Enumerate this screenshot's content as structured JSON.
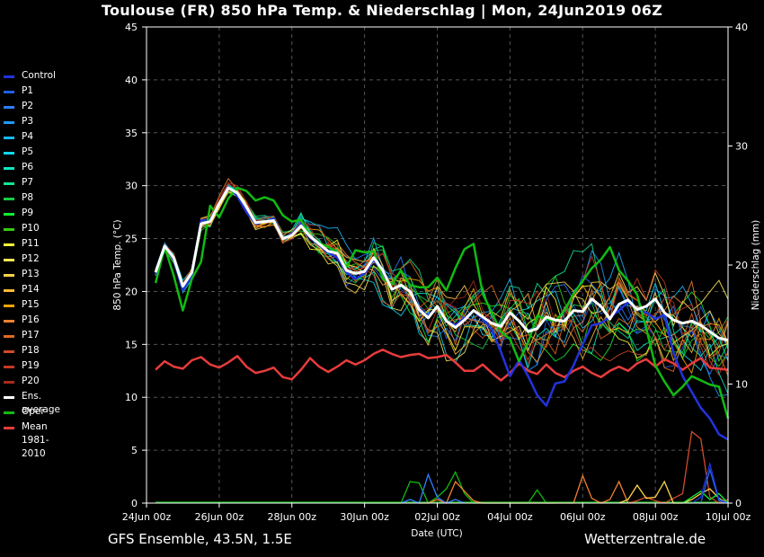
{
  "page": {
    "title": "Toulouse  (FR)  850 hPa Temp. & Niederschlag | Mon, 24Jun2019 06Z",
    "footer_left": "GFS Ensemble, 43.5N, 1.5E",
    "footer_right": "Wetterzentrale.de"
  },
  "chart_data": {
    "type": "line",
    "xlabel": "Date (UTC)",
    "ylabel": "850 hPa Temp. (°C)",
    "ylabel_right": "Niederschlag (mm)",
    "ylim": [
      0,
      45
    ],
    "ylim_right": [
      0,
      40
    ],
    "yticks": [
      "0",
      "5",
      "10",
      "15",
      "20",
      "25",
      "30",
      "35",
      "40",
      "45"
    ],
    "yticks_right": [
      "0",
      "10",
      "20",
      "30",
      "40"
    ],
    "xlim_hours": [
      0,
      384
    ],
    "xticks": [
      "24Jun 00z",
      "26Jun 00z",
      "28Jun 00z",
      "30Jun 00z",
      "02Jul 00z",
      "04Jul 00z",
      "06Jul 00z",
      "08Jul 00z",
      "10Jul 00z"
    ],
    "grid": true,
    "legend_position": "left",
    "legend": [
      {
        "label": "Control",
        "color": "#2233dd"
      },
      {
        "label": "P1",
        "color": "#1f5fe6"
      },
      {
        "label": "P2",
        "color": "#2f7dff"
      },
      {
        "label": "P3",
        "color": "#1e9bff"
      },
      {
        "label": "P4",
        "color": "#19b7ff"
      },
      {
        "label": "P5",
        "color": "#10d8ee"
      },
      {
        "label": "P6",
        "color": "#10e8c0"
      },
      {
        "label": "P7",
        "color": "#10e890"
      },
      {
        "label": "P8",
        "color": "#18cc44"
      },
      {
        "label": "P9",
        "color": "#11ee33"
      },
      {
        "label": "P10",
        "color": "#33cc11"
      },
      {
        "label": "P11",
        "color": "#ffff33"
      },
      {
        "label": "P12",
        "color": "#ffe855"
      },
      {
        "label": "P13",
        "color": "#ffd24a"
      },
      {
        "label": "P14",
        "color": "#ffbb33"
      },
      {
        "label": "P15",
        "color": "#ffa500"
      },
      {
        "label": "P16",
        "color": "#f08030"
      },
      {
        "label": "P17",
        "color": "#e06a1e"
      },
      {
        "label": "P18",
        "color": "#d04a2a"
      },
      {
        "label": "P19",
        "color": "#c83a24"
      },
      {
        "label": "P20",
        "color": "#aa2a1a"
      },
      {
        "label": "Ens. average",
        "color": "#ffffff"
      },
      {
        "label": "Oper",
        "color": "#11bb11"
      },
      {
        "label": "Mean 1981-2010",
        "color": "#e83c3c"
      }
    ],
    "series": [
      {
        "name": "Ens. average",
        "color": "#ffffff",
        "width": 3,
        "x": [
          6,
          12,
          18,
          24,
          30,
          36,
          42,
          48,
          54,
          60,
          66,
          72,
          78,
          84,
          90,
          96,
          102,
          108,
          114,
          120,
          126,
          132,
          138,
          144,
          150,
          156,
          162,
          168,
          174,
          180,
          186,
          192,
          198,
          204,
          210,
          216,
          222,
          228,
          234,
          240,
          246,
          252,
          258,
          264,
          270,
          276,
          282,
          288,
          294,
          300,
          306,
          312,
          318,
          324,
          330,
          336,
          342,
          348,
          354,
          360,
          366,
          372,
          378,
          384
        ],
        "y": [
          21.8,
          24.3,
          23.2,
          20.5,
          21.8,
          26.4,
          26.6,
          28.3,
          29.8,
          29.3,
          28.0,
          26.5,
          26.6,
          26.7,
          25.0,
          25.3,
          26.2,
          25.2,
          24.5,
          23.8,
          23.6,
          22.0,
          21.7,
          21.9,
          23.2,
          22.0,
          20.2,
          20.6,
          20.0,
          18.3,
          17.5,
          18.6,
          17.2,
          16.6,
          17.3,
          18.2,
          17.6,
          17.0,
          16.7,
          18.0,
          17.2,
          16.2,
          16.5,
          17.6,
          17.3,
          17.2,
          18.2,
          18.1,
          19.3,
          18.6,
          17.4,
          18.8,
          19.2,
          18.3,
          18.6,
          19.3,
          18.0,
          17.3,
          17.0,
          17.2,
          16.8,
          16.2,
          15.6,
          15.4
        ]
      },
      {
        "name": "Oper",
        "color": "#11bb11",
        "width": 2.5,
        "x": [
          6,
          12,
          18,
          24,
          30,
          36,
          42,
          48,
          54,
          60,
          66,
          72,
          78,
          84,
          90,
          96,
          102,
          108,
          114,
          120,
          126,
          132,
          138,
          144,
          150,
          156,
          162,
          168,
          174,
          180,
          186,
          192,
          198,
          204,
          210,
          216,
          222,
          228,
          234,
          240,
          246,
          252,
          258,
          264,
          270,
          276,
          282,
          288,
          294,
          300,
          306,
          312,
          318,
          324,
          330,
          336,
          342,
          348,
          354,
          360,
          366,
          372,
          378,
          384
        ],
        "y": [
          20.8,
          24.2,
          21.5,
          18.2,
          21.2,
          22.8,
          28.1,
          27.0,
          28.8,
          29.8,
          29.5,
          28.6,
          28.9,
          28.6,
          27.2,
          26.6,
          26.8,
          25.2,
          24.6,
          24.2,
          23.7,
          22.3,
          23.9,
          23.7,
          23.8,
          21.2,
          20.7,
          22.0,
          20.6,
          20.4,
          20.4,
          21.3,
          20.1,
          22.2,
          24.0,
          24.5,
          19.8,
          18.0,
          16.2,
          15.5,
          13.4,
          15.2,
          17.7,
          17.4,
          17.2,
          18.2,
          19.8,
          21.0,
          22.2,
          23.0,
          24.2,
          22.0,
          21.0,
          19.7,
          16.5,
          13.0,
          11.5,
          10.2,
          11.0,
          12.0,
          11.6,
          11.2,
          11.0,
          8.0
        ]
      },
      {
        "name": "Control",
        "color": "#2233dd",
        "width": 2.5,
        "x": [
          6,
          12,
          18,
          24,
          30,
          36,
          42,
          48,
          54,
          60,
          66,
          72,
          78,
          84,
          90,
          96,
          102,
          108,
          114,
          120,
          126,
          132,
          138,
          144,
          150,
          156,
          162,
          168,
          174,
          180,
          186,
          192,
          198,
          204,
          210,
          216,
          222,
          228,
          234,
          240,
          246,
          252,
          258,
          264,
          270,
          276,
          282,
          288,
          294,
          300,
          306,
          312,
          318,
          324,
          330,
          336,
          342,
          348,
          354,
          360,
          366,
          372,
          378,
          384
        ],
        "y": [
          21.6,
          24.4,
          23.0,
          20.1,
          21.5,
          26.7,
          26.8,
          28.3,
          29.9,
          29.0,
          27.5,
          26.4,
          26.6,
          26.9,
          25.0,
          25.4,
          26.4,
          25.1,
          24.4,
          23.7,
          23.2,
          21.8,
          21.2,
          21.7,
          23.0,
          21.8,
          20.2,
          20.6,
          20.0,
          18.4,
          17.6,
          18.6,
          17.2,
          16.8,
          17.5,
          18.2,
          17.4,
          16.4,
          14.3,
          12.0,
          13.5,
          12.0,
          10.2,
          9.2,
          11.3,
          11.5,
          13.0,
          15.0,
          16.8,
          17.0,
          17.6,
          18.2,
          19.0,
          18.3,
          18.0,
          17.4,
          17.8,
          14.2,
          12.0,
          10.5,
          9.0,
          8.0,
          6.5,
          6.0
        ]
      },
      {
        "name": "Mean 1981-2010",
        "color": "#e83c3c",
        "width": 2.5,
        "x": [
          6,
          12,
          18,
          24,
          30,
          36,
          42,
          48,
          54,
          60,
          66,
          72,
          78,
          84,
          90,
          96,
          102,
          108,
          114,
          120,
          126,
          132,
          138,
          144,
          150,
          156,
          162,
          168,
          174,
          180,
          186,
          192,
          198,
          204,
          210,
          216,
          222,
          228,
          234,
          240,
          246,
          252,
          258,
          264,
          270,
          276,
          282,
          288,
          294,
          300,
          306,
          312,
          318,
          324,
          330,
          336,
          342,
          348,
          354,
          360,
          366,
          372,
          378,
          384
        ],
        "y": [
          12.6,
          13.4,
          12.9,
          12.7,
          13.5,
          13.8,
          13.1,
          12.8,
          13.3,
          13.9,
          12.9,
          12.3,
          12.5,
          12.8,
          11.9,
          11.7,
          12.6,
          13.7,
          12.9,
          12.4,
          12.9,
          13.5,
          13.1,
          13.5,
          14.1,
          14.5,
          14.1,
          13.8,
          14.0,
          14.1,
          13.7,
          13.8,
          14.0,
          13.3,
          12.5,
          12.5,
          13.1,
          12.3,
          11.6,
          12.3,
          13.2,
          12.5,
          12.2,
          13.1,
          12.3,
          11.9,
          12.5,
          12.9,
          12.3,
          11.9,
          12.5,
          12.9,
          12.5,
          13.2,
          13.6,
          12.9,
          13.6,
          13.2,
          12.6,
          13.2,
          13.7,
          12.8,
          12.7,
          12.6
        ]
      }
    ],
    "precipitation": [
      {
        "name": "Oper",
        "color": "#11bb11",
        "x": [
          144,
          150,
          156,
          162,
          168,
          174,
          180,
          186,
          192,
          198,
          204,
          210,
          216,
          222,
          228,
          234,
          240,
          246,
          252,
          258,
          264,
          270
        ],
        "y": [
          0,
          0,
          0,
          0,
          0,
          1.8,
          1.7,
          0,
          0.5,
          1.2,
          2.6,
          0.8,
          0,
          0,
          0,
          0,
          0,
          0,
          0,
          1.1,
          0,
          0
        ]
      },
      {
        "name": "P16",
        "color": "#f08030",
        "x": [
          180,
          186,
          192,
          198,
          204,
          210,
          216,
          222,
          228,
          234,
          240,
          246,
          252,
          258,
          264,
          270,
          276,
          282,
          288,
          294,
          300,
          306,
          312,
          318
        ],
        "y": [
          0,
          0,
          0.3,
          0,
          1.8,
          1.0,
          0.2,
          0,
          0,
          0,
          0,
          0,
          0,
          0,
          0,
          0,
          0,
          0,
          2.3,
          0.4,
          0,
          0.3,
          1.8,
          0
        ]
      },
      {
        "name": "P2",
        "color": "#2f7dff",
        "x": [
          168,
          174,
          180,
          186,
          192,
          198,
          204,
          210
        ],
        "y": [
          0,
          0.3,
          0,
          2.4,
          0.5,
          0,
          0.3,
          0
        ]
      },
      {
        "name": "P18",
        "color": "#d04a2a",
        "x": [
          318,
          324,
          330,
          336,
          342,
          348,
          354,
          360,
          366,
          372,
          378,
          384
        ],
        "y": [
          0,
          0.2,
          0.5,
          0.2,
          0,
          0.4,
          0.8,
          6.0,
          5.4,
          0.5,
          0,
          0.3
        ]
      },
      {
        "name": "P13",
        "color": "#ffd24a",
        "x": [
          312,
          318,
          324,
          330,
          336,
          342,
          348,
          354,
          360,
          366,
          372,
          378,
          384
        ],
        "y": [
          0,
          0.3,
          1.5,
          0.4,
          0.5,
          1.8,
          0,
          0,
          0.3,
          0.8,
          1.2,
          0.4,
          0
        ]
      },
      {
        "name": "P9",
        "color": "#11ee33",
        "x": [
          354,
          360,
          366,
          372,
          378,
          384
        ],
        "y": [
          0,
          0.5,
          1.0,
          0.3,
          0.8,
          0
        ]
      },
      {
        "name": "Control",
        "color": "#2233dd",
        "x": [
          360,
          366,
          372,
          378,
          384
        ],
        "y": [
          0,
          0.5,
          3.3,
          0.3,
          0
        ]
      },
      {
        "name": "P1",
        "color": "#1f5fe6",
        "x": [
          366,
          372,
          378,
          384
        ],
        "y": [
          0,
          2.8,
          0.2,
          0
        ]
      }
    ],
    "ensemble_band": {
      "note": "members P1-P20 drawn as thin lines around ensemble average"
    }
  }
}
